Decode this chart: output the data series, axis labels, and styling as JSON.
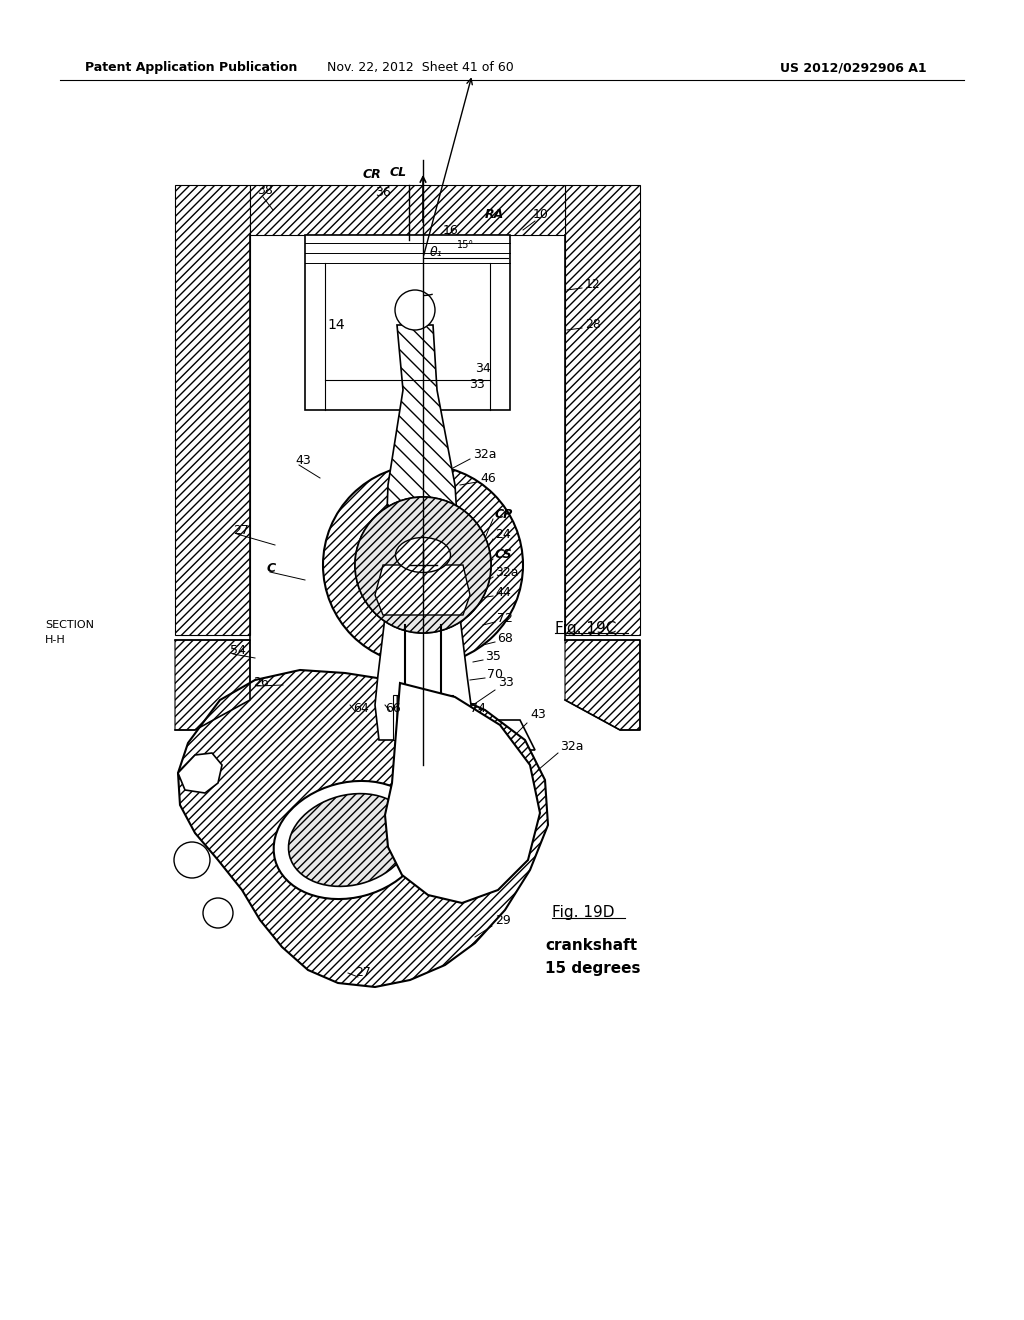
{
  "bg_color": "#ffffff",
  "header_left": "Patent Application Publication",
  "header_mid": "Nov. 22, 2012  Sheet 41 of 60",
  "header_right": "US 2012/0292906 A1"
}
